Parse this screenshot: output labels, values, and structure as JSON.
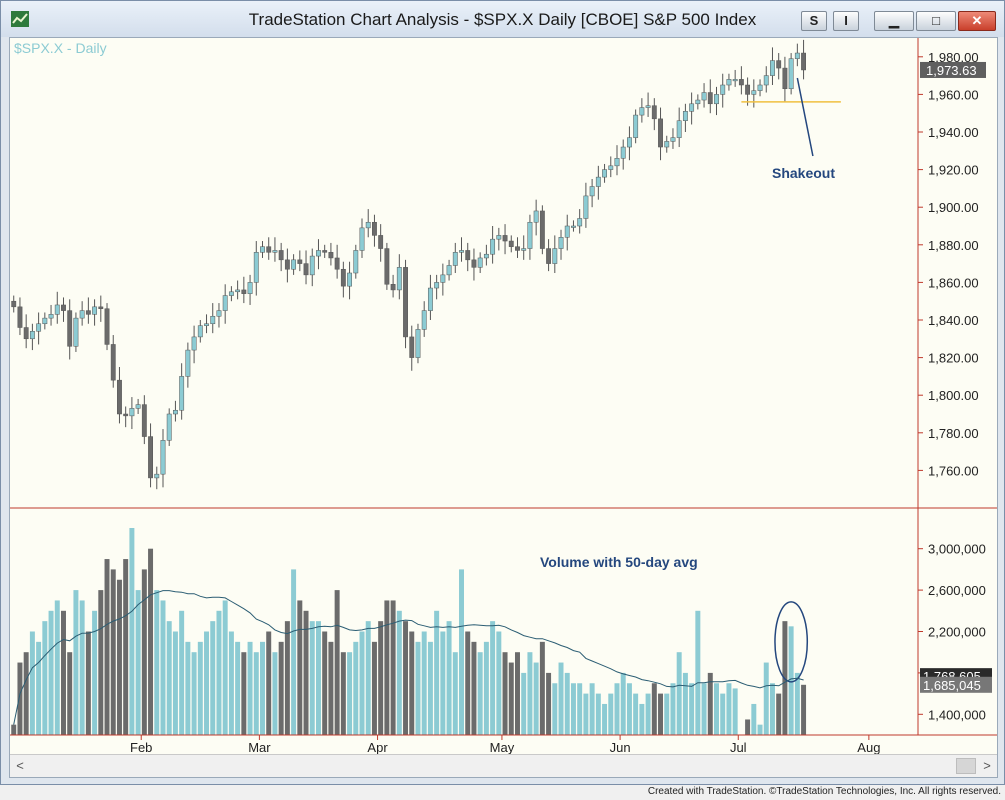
{
  "window": {
    "title": "TradeStation Chart Analysis - $SPX.X Daily [CBOE] S&P 500 Index",
    "buttons": {
      "s_label": "S",
      "i_label": "I",
      "minimize": "▁",
      "maximize": "□",
      "close": "✕"
    }
  },
  "chart": {
    "symbol_label": "$SPX.X - Daily",
    "last_price_label": "1,973.63",
    "annotation": "Shakeout",
    "volume_annotation": "Volume with 50-day avg",
    "volume_last_label": "1,685,045",
    "volume_avg_label": "1,768,605"
  },
  "colors": {
    "up": "#8ccbd3",
    "down": "#6b6b6b",
    "support": "#f0c040",
    "annotation": "#24477e",
    "axis": "#c0392b",
    "avg_line": "#2b5d73"
  },
  "footer": {
    "text": "Created with TradeStation. ©TradeStation Technologies, Inc. All rights reserved."
  },
  "chart_data": [
    {
      "type": "candlestick",
      "title": "$SPX.X - Daily",
      "ylim": [
        1740,
        1990
      ],
      "yticks": [
        "1,980.00",
        "1,960.00",
        "1,940.00",
        "1,920.00",
        "1,900.00",
        "1,880.00",
        "1,860.00",
        "1,840.00",
        "1,820.00",
        "1,800.00",
        "1,780.00",
        "1,760.00"
      ],
      "ytick_values": [
        1980,
        1960,
        1940,
        1920,
        1900,
        1880,
        1860,
        1840,
        1820,
        1800,
        1780,
        1760
      ],
      "x_labels": [
        "Feb",
        "Mar",
        "Apr",
        "May",
        "Jun",
        "Jul",
        "Aug"
      ],
      "x_label_index": [
        20.5,
        39.5,
        58.5,
        78.5,
        97.5,
        116.5,
        137.5
      ],
      "support_level": 1956,
      "close": [
        1847,
        1836,
        1830,
        1834,
        1838,
        1841,
        1843,
        1848,
        1845,
        1826,
        1841,
        1845,
        1843,
        1847,
        1846,
        1827,
        1808,
        1790,
        1789,
        1793,
        1795,
        1778,
        1756,
        1758,
        1776,
        1790,
        1792,
        1810,
        1824,
        1831,
        1837,
        1838,
        1842,
        1845,
        1853,
        1855,
        1856,
        1854,
        1860,
        1876,
        1879,
        1876,
        1877,
        1872,
        1867,
        1872,
        1870,
        1864,
        1874,
        1877,
        1876,
        1873,
        1867,
        1858,
        1865,
        1877,
        1889,
        1892,
        1885,
        1878,
        1859,
        1856,
        1868,
        1831,
        1820,
        1835,
        1845,
        1857,
        1860,
        1864,
        1869,
        1876,
        1877,
        1872,
        1868,
        1873,
        1875,
        1883,
        1885,
        1882,
        1879,
        1877,
        1878,
        1892,
        1898,
        1878,
        1870,
        1878,
        1884,
        1890,
        1890,
        1894,
        1906,
        1911,
        1916,
        1920,
        1922,
        1926,
        1932,
        1937,
        1949,
        1953,
        1954,
        1947,
        1932,
        1935,
        1937,
        1946,
        1951,
        1955,
        1957,
        1961,
        1955,
        1960,
        1965,
        1968,
        1968,
        1965,
        1960,
        1962,
        1965,
        1970,
        1978,
        1974,
        1963,
        1979,
        1982,
        1973
      ],
      "volume": [
        1300000,
        1900000,
        2000000,
        2200000,
        2100000,
        2300000,
        2400000,
        2500000,
        2400000,
        2000000,
        2600000,
        2500000,
        2200000,
        2400000,
        2600000,
        2900000,
        2800000,
        2700000,
        2900000,
        3200000,
        2600000,
        2800000,
        3000000,
        2600000,
        2500000,
        2300000,
        2200000,
        2400000,
        2100000,
        2000000,
        2100000,
        2200000,
        2300000,
        2400000,
        2500000,
        2200000,
        2100000,
        2000000,
        2100000,
        2000000,
        2100000,
        2200000,
        2000000,
        2100000,
        2300000,
        2800000,
        2500000,
        2400000,
        2300000,
        2300000,
        2200000,
        2100000,
        2600000,
        2000000,
        2000000,
        2100000,
        2200000,
        2300000,
        2100000,
        2300000,
        2500000,
        2500000,
        2400000,
        2300000,
        2200000,
        2100000,
        2200000,
        2100000,
        2400000,
        2200000,
        2300000,
        2000000,
        2800000,
        2200000,
        2100000,
        2000000,
        2100000,
        2300000,
        2200000,
        2000000,
        1900000,
        2000000,
        1800000,
        2000000,
        1900000,
        2100000,
        1800000,
        1700000,
        1900000,
        1800000,
        1700000,
        1700000,
        1600000,
        1700000,
        1600000,
        1500000,
        1600000,
        1700000,
        1800000,
        1700000,
        1600000,
        1500000,
        1600000,
        1700000,
        1600000,
        1600000,
        1700000,
        2000000,
        1800000,
        1700000,
        2400000,
        1700000,
        1800000,
        1700000,
        1600000,
        1700000,
        1650000,
        1200000,
        1350000,
        1500000,
        1300000,
        1900000,
        1700000,
        1600000,
        2300000,
        2250000,
        1800000,
        1685045
      ],
      "volume_ylim": [
        1200000,
        3200000
      ],
      "volume_yticks": [
        "3,000,000",
        "2,600,000",
        "2,200,000",
        "1,800,000",
        "1,400,000"
      ],
      "volume_ytick_values": [
        3000000,
        2600000,
        2200000,
        1800000,
        1400000
      ],
      "volume_avg_last": 1768605
    }
  ]
}
